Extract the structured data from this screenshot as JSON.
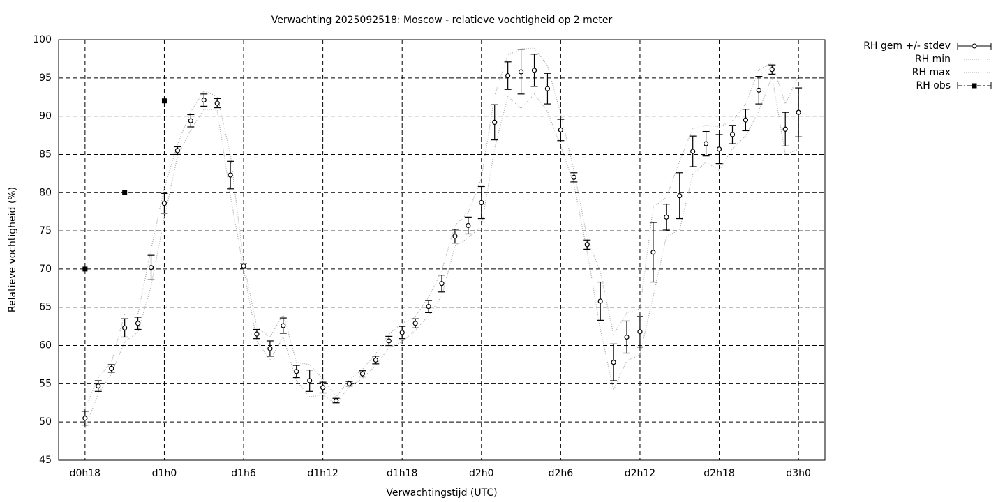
{
  "chart_data": {
    "type": "errorbar-line",
    "title": "Verwachting 2025092518: Moscow - relatieve vochtigheid op 2 meter",
    "xlabel": "Verwachtingstijd (UTC)",
    "ylabel": "Relatieve vochtigheid (%)",
    "xlim": [
      16,
      74
    ],
    "xticks": [
      {
        "value": 18,
        "label": "d0h18"
      },
      {
        "value": 24,
        "label": "d1h0"
      },
      {
        "value": 30,
        "label": "d1h6"
      },
      {
        "value": 36,
        "label": "d1h12"
      },
      {
        "value": 42,
        "label": "d1h18"
      },
      {
        "value": 48,
        "label": "d2h0"
      },
      {
        "value": 54,
        "label": "d2h6"
      },
      {
        "value": 60,
        "label": "d2h12"
      },
      {
        "value": 66,
        "label": "d2h18"
      },
      {
        "value": 72,
        "label": "d3h0"
      }
    ],
    "ylim": [
      45,
      100
    ],
    "yticks": [
      45,
      50,
      55,
      60,
      65,
      70,
      75,
      80,
      85,
      90,
      95,
      100
    ],
    "grid": true,
    "legend": "outside-top-right",
    "x": [
      18,
      19,
      20,
      21,
      22,
      23,
      24,
      25,
      26,
      27,
      28,
      29,
      30,
      31,
      32,
      33,
      34,
      35,
      36,
      37,
      38,
      39,
      40,
      41,
      42,
      43,
      44,
      45,
      46,
      47,
      48,
      49,
      50,
      51,
      52,
      53,
      54,
      55,
      56,
      57,
      58,
      59,
      60,
      61,
      62,
      63,
      64,
      65,
      66,
      67,
      68,
      69,
      70,
      71,
      72
    ],
    "series": [
      {
        "name": "RH gem +/- stdev",
        "color": "#000000",
        "values": [
          50.5,
          54.7,
          57.0,
          62.3,
          62.9,
          70.2,
          78.6,
          85.5,
          89.4,
          92.1,
          91.7,
          82.3,
          70.4,
          61.5,
          59.6,
          62.6,
          56.6,
          55.4,
          54.5,
          52.8,
          55.0,
          56.3,
          58.1,
          60.6,
          61.7,
          62.9,
          65.1,
          68.1,
          74.3,
          75.7,
          78.7,
          89.2,
          95.3,
          95.8,
          96.0,
          93.6,
          88.2,
          82.0,
          73.2,
          65.8,
          57.8,
          61.1,
          61.8,
          72.2,
          76.8,
          79.6,
          85.4,
          86.4,
          85.7,
          87.6,
          89.5,
          93.4,
          96.1,
          88.3,
          90.5
        ],
        "errors": [
          0.9,
          0.7,
          0.5,
          1.2,
          0.8,
          1.6,
          1.3,
          0.5,
          0.8,
          0.8,
          0.6,
          1.8,
          0.3,
          0.6,
          1.0,
          1.0,
          0.8,
          1.4,
          0.7,
          0.3,
          0.3,
          0.4,
          0.5,
          0.6,
          0.8,
          0.6,
          0.8,
          1.1,
          0.9,
          1.1,
          2.1,
          2.3,
          1.8,
          2.9,
          2.1,
          2.0,
          1.4,
          0.6,
          0.6,
          2.5,
          2.4,
          2.1,
          2.0,
          3.9,
          1.7,
          3.0,
          2.0,
          1.6,
          1.9,
          1.2,
          1.4,
          1.8,
          0.6,
          2.2,
          3.2
        ]
      },
      {
        "name": "RH min",
        "color": "#aaaaaa",
        "values": [
          49.2,
          53.7,
          56.3,
          60.5,
          61.7,
          67.8,
          76.7,
          84.8,
          88.2,
          90.9,
          90.8,
          79.6,
          70.0,
          60.6,
          58.1,
          61.1,
          55.4,
          53.3,
          53.5,
          52.4,
          54.6,
          55.7,
          57.4,
          59.7,
          60.5,
          62.0,
          63.9,
          66.5,
          73.0,
          74.1,
          75.6,
          85.8,
          92.6,
          91.0,
          92.9,
          90.6,
          86.1,
          81.1,
          72.3,
          62.1,
          54.2,
          58.0,
          58.8,
          66.4,
          74.3,
          75.1,
          82.4,
          84.0,
          82.9,
          85.8,
          87.4,
          90.7,
          95.2,
          85.0,
          85.7
        ]
      },
      {
        "name": "RH max",
        "color": "#aaaaaa",
        "values": [
          51.8,
          55.8,
          57.8,
          64.1,
          64.1,
          72.6,
          80.6,
          86.3,
          90.6,
          93.3,
          92.6,
          85.0,
          70.9,
          62.4,
          61.1,
          64.1,
          57.8,
          57.5,
          55.6,
          53.3,
          55.5,
          56.9,
          58.9,
          61.5,
          62.9,
          63.8,
          66.3,
          69.8,
          75.7,
          77.4,
          81.9,
          92.7,
          98.0,
          98.8,
          98.9,
          96.6,
          90.3,
          82.9,
          74.1,
          69.6,
          61.4,
          64.3,
          64.8,
          78.1,
          79.4,
          84.1,
          88.4,
          88.8,
          88.6,
          89.4,
          91.6,
          96.1,
          97.0,
          91.6,
          95.3
        ]
      },
      {
        "name": "RH obs",
        "color": "#000000",
        "x": [
          18,
          21,
          24
        ],
        "values": [
          70,
          80,
          92
        ]
      }
    ]
  }
}
